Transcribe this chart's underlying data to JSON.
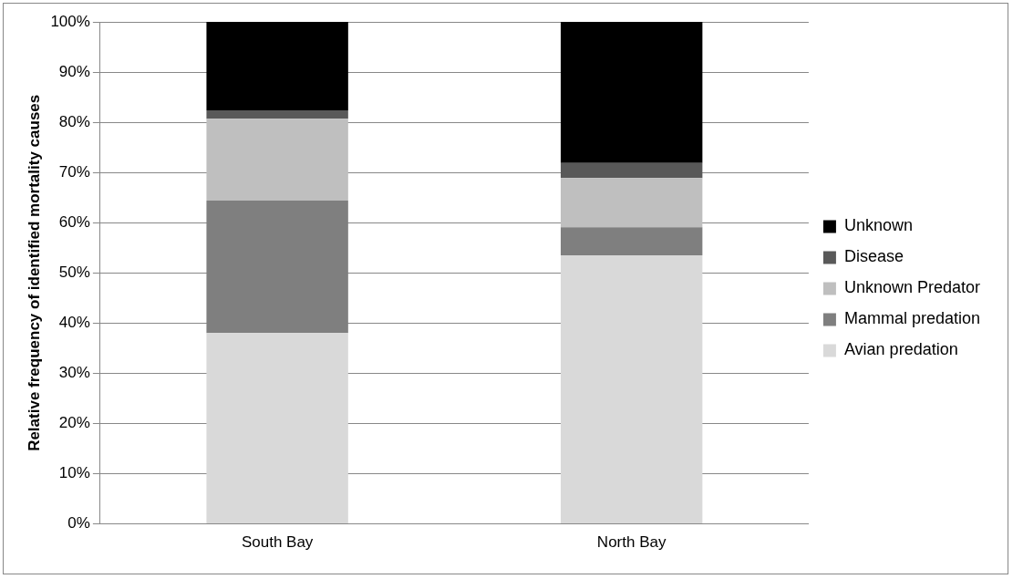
{
  "chart_data": {
    "type": "bar",
    "stacked": true,
    "ylabel": "Relative frequency of identified mortality causes",
    "categories": [
      "South Bay",
      "North Bay"
    ],
    "series": [
      {
        "name": "Avian predation",
        "color": "#d9d9d9",
        "values": [
          38,
          53.5
        ]
      },
      {
        "name": "Mammal predation",
        "color": "#7f7f7f",
        "values": [
          26.4,
          5.6
        ]
      },
      {
        "name": "Unknown Predator",
        "color": "#bfbfbf",
        "values": [
          16.3,
          9.8
        ]
      },
      {
        "name": "Disease",
        "color": "#595959",
        "values": [
          1.7,
          3
        ]
      },
      {
        "name": "Unknown",
        "color": "#000000",
        "values": [
          17.6,
          28.1
        ]
      }
    ],
    "ylim": [
      0,
      100
    ],
    "yticks": [
      {
        "value": 0,
        "label": "0%"
      },
      {
        "value": 10,
        "label": "10%"
      },
      {
        "value": 20,
        "label": "20%"
      },
      {
        "value": 30,
        "label": "30%"
      },
      {
        "value": 40,
        "label": "40%"
      },
      {
        "value": 50,
        "label": "50%"
      },
      {
        "value": 60,
        "label": "60%"
      },
      {
        "value": 70,
        "label": "70%"
      },
      {
        "value": 80,
        "label": "80%"
      },
      {
        "value": 90,
        "label": "90%"
      },
      {
        "value": 100,
        "label": "100%"
      }
    ],
    "grid": "y",
    "legend": "right"
  }
}
